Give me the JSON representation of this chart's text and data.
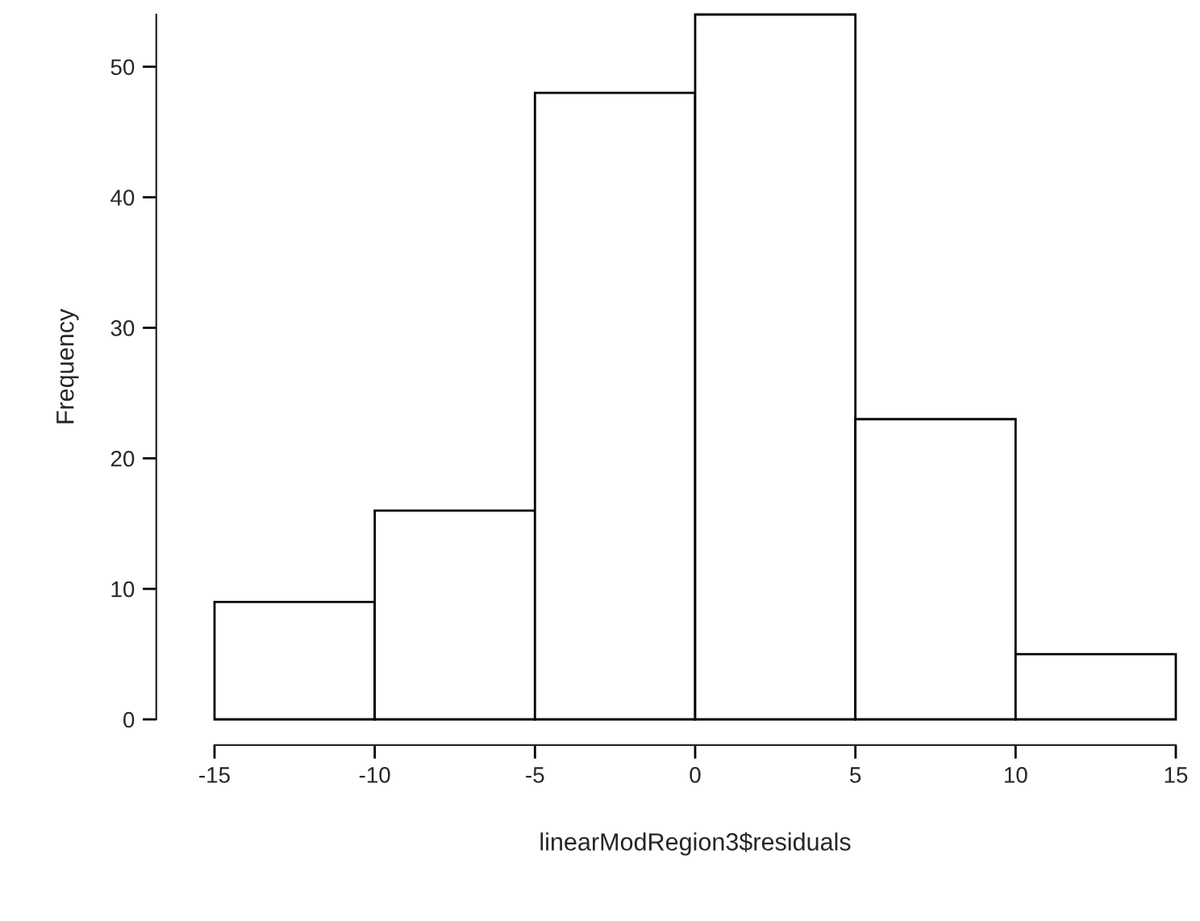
{
  "chart_data": {
    "type": "histogram",
    "xlabel": "linearModRegion3$residuals",
    "ylabel": "Frequency",
    "bins": [
      -15,
      -10,
      -5,
      0,
      5,
      10,
      15
    ],
    "values": [
      9,
      16,
      48,
      54,
      23,
      5
    ],
    "color": "#ffffff",
    "xlim": [
      -15,
      15
    ],
    "ylim": [
      0,
      54
    ],
    "xticks": [
      -15,
      -10,
      -5,
      0,
      5,
      10,
      15
    ],
    "yticks": [
      0,
      10,
      20,
      30,
      40,
      50
    ],
    "grid": false
  }
}
